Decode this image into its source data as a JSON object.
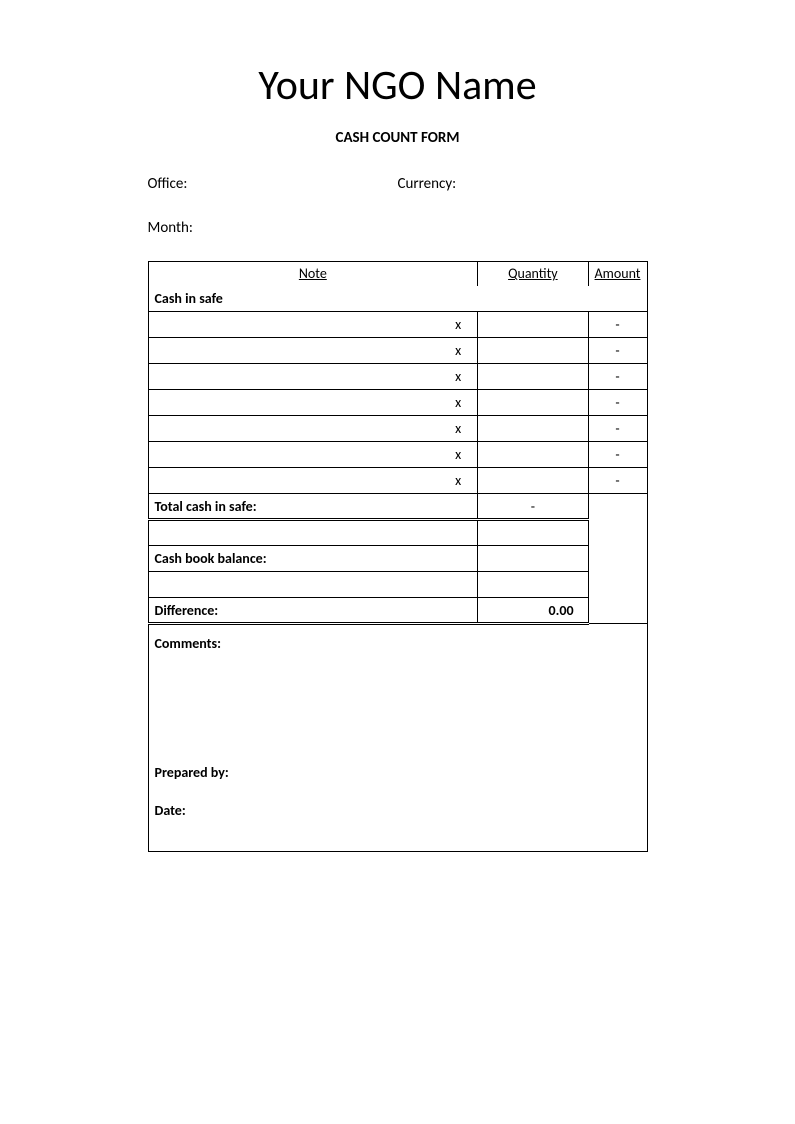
{
  "title": "Your NGO Name",
  "subtitle": "CASH COUNT FORM",
  "fields": {
    "office_label": "Office:",
    "currency_label": "Currency:",
    "month_label": "Month:"
  },
  "table": {
    "headers": {
      "note": "Note",
      "quantity": "Quantity",
      "amount": "Amount"
    },
    "cash_in_safe_label": "Cash in safe",
    "rows": [
      {
        "note": "x",
        "quantity": "",
        "amount": "-"
      },
      {
        "note": "x",
        "quantity": "",
        "amount": "-"
      },
      {
        "note": "x",
        "quantity": "",
        "amount": "-"
      },
      {
        "note": "x",
        "quantity": "",
        "amount": "-"
      },
      {
        "note": "x",
        "quantity": "",
        "amount": "-"
      },
      {
        "note": "x",
        "quantity": "",
        "amount": "-"
      },
      {
        "note": "x",
        "quantity": "",
        "amount": "-"
      }
    ],
    "total_label": "Total cash in safe:",
    "total_amount": "-",
    "cash_book_label": "Cash book balance:",
    "cash_book_amount": "",
    "difference_label": "Difference:",
    "difference_amount": "0.00",
    "comments_label": "Comments:",
    "prepared_by_label": "Prepared by:",
    "date_label": "Date:"
  },
  "styling": {
    "background_color": "#ffffff",
    "text_color": "#000000",
    "border_color": "#000000",
    "title_fontsize": 42,
    "subtitle_fontsize": 15,
    "body_fontsize": 14,
    "font_family": "Calibri"
  }
}
